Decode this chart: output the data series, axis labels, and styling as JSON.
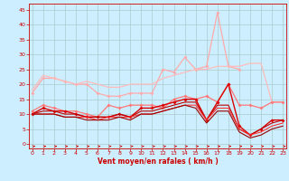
{
  "bg_color": "#cceeff",
  "grid_color": "#aacccc",
  "xlabel": "Vent moyen/en rafales ( km/h )",
  "xlabel_color": "#cc0000",
  "tick_color": "#cc0000",
  "x_ticks": [
    0,
    1,
    2,
    3,
    4,
    5,
    6,
    7,
    8,
    9,
    10,
    11,
    12,
    13,
    14,
    15,
    16,
    17,
    18,
    19,
    20,
    21,
    22,
    23
  ],
  "y_ticks": [
    0,
    5,
    10,
    15,
    20,
    25,
    30,
    35,
    40,
    45
  ],
  "xlim": [
    -0.3,
    23.3
  ],
  "ylim": [
    -1.5,
    47
  ],
  "series": [
    {
      "x": [
        0,
        1,
        2,
        3,
        4,
        5,
        6,
        7,
        8,
        9,
        10,
        11,
        12,
        13,
        14,
        15,
        16,
        17,
        18,
        19
      ],
      "y": [
        17,
        22,
        22,
        21,
        20,
        20,
        17,
        16,
        16,
        17,
        17,
        17,
        25,
        24,
        29,
        25,
        26,
        44,
        26,
        25
      ],
      "color": "#ffaaaa",
      "lw": 0.9,
      "marker": "D",
      "ms": 2.0
    },
    {
      "x": [
        0,
        1,
        2,
        3,
        4,
        5,
        6,
        7,
        8,
        9,
        10,
        11,
        12,
        13,
        14,
        15,
        16,
        17,
        18,
        19,
        20,
        21,
        22,
        23
      ],
      "y": [
        18,
        23,
        22,
        21,
        20,
        21,
        20,
        19,
        19,
        20,
        20,
        20,
        22,
        23,
        24,
        25,
        25,
        26,
        26,
        26,
        27,
        27,
        14,
        14
      ],
      "color": "#ffbbbb",
      "lw": 0.9,
      "marker": null,
      "ms": 0
    },
    {
      "x": [
        0,
        1,
        2,
        3,
        4,
        5,
        6,
        7,
        8,
        9,
        10,
        11,
        12,
        13,
        14,
        15,
        16,
        17,
        18,
        19,
        20,
        21,
        22,
        23
      ],
      "y": [
        11,
        13,
        12,
        11,
        11,
        10,
        9,
        13,
        12,
        13,
        13,
        13,
        12,
        15,
        16,
        15,
        16,
        14,
        20,
        13,
        13,
        12,
        14,
        14
      ],
      "color": "#ff7777",
      "lw": 0.9,
      "marker": "D",
      "ms": 2.0
    },
    {
      "x": [
        0,
        1,
        2,
        3,
        4,
        5,
        6,
        7,
        8,
        9,
        10,
        11,
        12,
        13,
        14,
        15,
        16,
        17,
        18,
        19,
        20,
        21,
        22,
        23
      ],
      "y": [
        10,
        12,
        11,
        11,
        10,
        9,
        9,
        9,
        10,
        9,
        12,
        12,
        13,
        14,
        15,
        15,
        8,
        14,
        20,
        6,
        3,
        5,
        8,
        8
      ],
      "color": "#dd0000",
      "lw": 1.0,
      "marker": "D",
      "ms": 2.0
    },
    {
      "x": [
        0,
        1,
        2,
        3,
        4,
        5,
        6,
        7,
        8,
        9,
        10,
        11,
        12,
        13,
        14,
        15,
        16,
        17,
        18,
        19,
        20,
        21,
        22,
        23
      ],
      "y": [
        10,
        11,
        11,
        10,
        10,
        9,
        9,
        9,
        10,
        9,
        11,
        11,
        12,
        13,
        14,
        14,
        8,
        13,
        13,
        5,
        3,
        5,
        7,
        8
      ],
      "color": "#bb0000",
      "lw": 0.8,
      "marker": null,
      "ms": 0
    },
    {
      "x": [
        0,
        1,
        2,
        3,
        4,
        5,
        6,
        7,
        8,
        9,
        10,
        11,
        12,
        13,
        14,
        15,
        16,
        17,
        18,
        19,
        20,
        21,
        22,
        23
      ],
      "y": [
        10,
        10,
        10,
        9,
        9,
        9,
        8,
        9,
        9,
        9,
        10,
        10,
        11,
        12,
        13,
        13,
        8,
        12,
        12,
        5,
        3,
        4,
        6,
        7
      ],
      "color": "#ff3333",
      "lw": 0.8,
      "marker": null,
      "ms": 0
    },
    {
      "x": [
        0,
        1,
        2,
        3,
        4,
        5,
        6,
        7,
        8,
        9,
        10,
        11,
        12,
        13,
        14,
        15,
        16,
        17,
        18,
        19,
        20,
        21,
        22,
        23
      ],
      "y": [
        10,
        10,
        10,
        9,
        9,
        8,
        8,
        8,
        9,
        8,
        10,
        10,
        11,
        12,
        13,
        12,
        7,
        11,
        11,
        4,
        2,
        3,
        5,
        6
      ],
      "color": "#990000",
      "lw": 0.8,
      "marker": null,
      "ms": 0
    }
  ],
  "wind_arrows": {
    "x": [
      0,
      1,
      2,
      3,
      4,
      5,
      6,
      7,
      8,
      9,
      10,
      11,
      12,
      13,
      14,
      15,
      16,
      17,
      18,
      19,
      20,
      21,
      22,
      23
    ],
    "y": -0.8,
    "color": "#cc0000",
    "size": 4
  }
}
